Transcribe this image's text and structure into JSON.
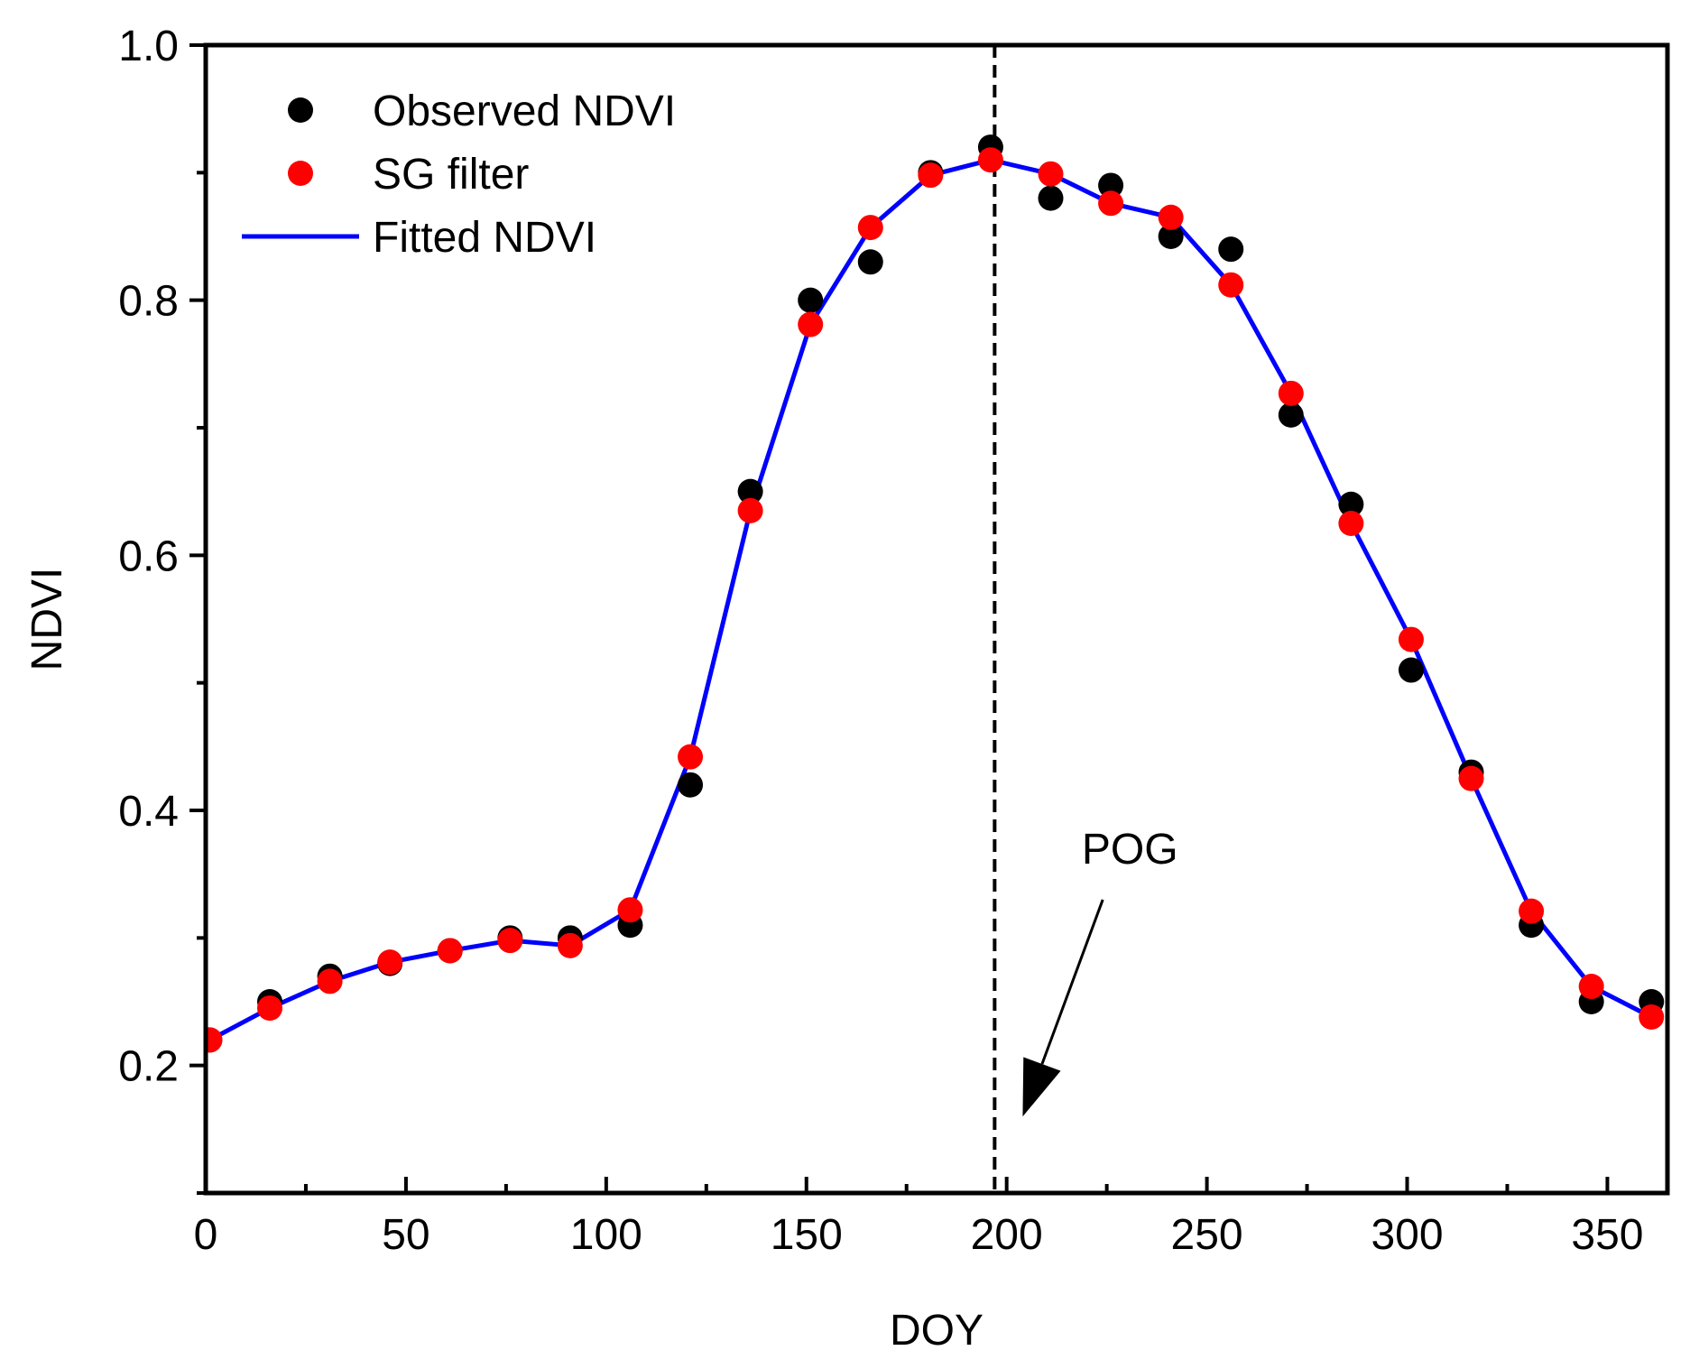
{
  "chart_data": {
    "type": "scatter",
    "title": "",
    "xlabel": "DOY",
    "ylabel": "NDVI",
    "xlim": [
      0,
      365
    ],
    "ylim": [
      0.1,
      1.0
    ],
    "xticks": [
      0,
      50,
      100,
      150,
      200,
      250,
      300,
      350
    ],
    "xtick_labels": [
      "0",
      "50",
      "100",
      "150",
      "200",
      "250",
      "300",
      "350"
    ],
    "yticks": [
      0.2,
      0.4,
      0.6,
      0.8,
      1.0
    ],
    "ytick_labels": [
      "0.2",
      "0.4",
      "0.6",
      "0.8",
      "1.0"
    ],
    "grid": false,
    "legend_position": "top-left",
    "colors": {
      "observed": "#000000",
      "sg": "#ff0000",
      "fitted": "#0000ff",
      "axis": "#000000"
    },
    "series": [
      {
        "name": "Observed NDVI",
        "kind": "scatter",
        "x": [
          1,
          16,
          31,
          46,
          61,
          76,
          91,
          106,
          121,
          136,
          151,
          166,
          181,
          196,
          211,
          226,
          241,
          256,
          271,
          286,
          301,
          316,
          331,
          346,
          361
        ],
        "y": [
          0.22,
          0.25,
          0.27,
          0.28,
          0.29,
          0.3,
          0.3,
          0.31,
          0.42,
          0.65,
          0.8,
          0.83,
          0.9,
          0.92,
          0.88,
          0.89,
          0.85,
          0.84,
          0.71,
          0.64,
          0.51,
          0.43,
          0.31,
          0.25,
          0.25
        ]
      },
      {
        "name": "SG filter",
        "kind": "scatter",
        "x": [
          1,
          16,
          31,
          46,
          61,
          76,
          91,
          106,
          121,
          136,
          151,
          166,
          181,
          196,
          211,
          226,
          241,
          256,
          271,
          286,
          301,
          316,
          331,
          346,
          361
        ],
        "y": [
          0.22,
          0.245,
          0.266,
          0.281,
          0.29,
          0.298,
          0.294,
          0.322,
          0.442,
          0.635,
          0.781,
          0.857,
          0.898,
          0.91,
          0.899,
          0.876,
          0.865,
          0.812,
          0.727,
          0.625,
          0.534,
          0.425,
          0.321,
          0.262,
          0.238
        ]
      },
      {
        "name": "Fitted NDVI",
        "kind": "line",
        "x": [
          1,
          16,
          31,
          46,
          61,
          76,
          91,
          106,
          121,
          136,
          151,
          166,
          181,
          196,
          211,
          226,
          241,
          256,
          271,
          286,
          301,
          316,
          331,
          346,
          361
        ],
        "y": [
          0.22,
          0.245,
          0.266,
          0.281,
          0.29,
          0.298,
          0.294,
          0.322,
          0.442,
          0.635,
          0.781,
          0.857,
          0.898,
          0.91,
          0.899,
          0.876,
          0.865,
          0.812,
          0.727,
          0.625,
          0.534,
          0.425,
          0.321,
          0.262,
          0.238
        ]
      }
    ],
    "annotations": [
      {
        "type": "vline",
        "x": 197,
        "style": "dashed"
      },
      {
        "type": "arrow",
        "text": "POG",
        "from": [
          224,
          0.33
        ],
        "to": [
          204,
          0.16
        ]
      }
    ]
  }
}
